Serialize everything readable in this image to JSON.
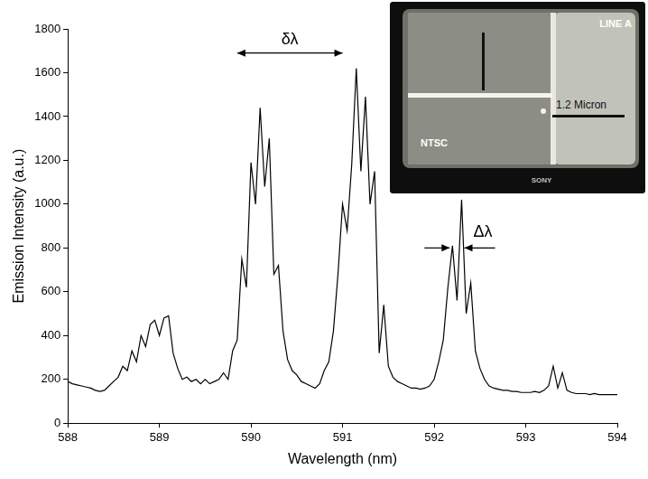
{
  "chart_data": {
    "type": "line",
    "x_label": "Wavelength (nm)",
    "y_label": "Emission Intensity (a.u.)",
    "x": [
      588.0,
      588.05,
      588.1,
      588.15,
      588.2,
      588.25,
      588.3,
      588.35,
      588.4,
      588.45,
      588.5,
      588.55,
      588.6,
      588.65,
      588.7,
      588.75,
      588.8,
      588.85,
      588.9,
      588.95,
      589.0,
      589.05,
      589.1,
      589.15,
      589.2,
      589.25,
      589.3,
      589.35,
      589.4,
      589.45,
      589.5,
      589.55,
      589.6,
      589.65,
      589.7,
      589.75,
      589.8,
      589.85,
      589.9,
      589.95,
      590.0,
      590.05,
      590.1,
      590.15,
      590.2,
      590.25,
      590.3,
      590.35,
      590.4,
      590.45,
      590.5,
      590.55,
      590.6,
      590.65,
      590.7,
      590.75,
      590.8,
      590.85,
      590.9,
      590.95,
      591.0,
      591.05,
      591.1,
      591.15,
      591.2,
      591.25,
      591.3,
      591.35,
      591.4,
      591.45,
      591.5,
      591.55,
      591.6,
      591.65,
      591.7,
      591.75,
      591.8,
      591.85,
      591.9,
      591.95,
      592.0,
      592.05,
      592.1,
      592.15,
      592.2,
      592.25,
      592.3,
      592.35,
      592.4,
      592.45,
      592.5,
      592.55,
      592.6,
      592.65,
      592.7,
      592.75,
      592.8,
      592.85,
      592.9,
      592.95,
      593.0,
      593.05,
      593.1,
      593.15,
      593.2,
      593.25,
      593.3,
      593.35,
      593.4,
      593.45,
      593.5,
      593.55,
      593.6,
      593.65,
      593.7,
      593.75,
      593.8,
      593.85,
      593.9,
      593.95,
      594.0
    ],
    "values": [
      190,
      180,
      175,
      170,
      165,
      160,
      150,
      145,
      150,
      170,
      190,
      210,
      260,
      240,
      330,
      280,
      400,
      350,
      450,
      470,
      400,
      480,
      490,
      320,
      250,
      200,
      210,
      190,
      200,
      180,
      200,
      180,
      190,
      200,
      230,
      200,
      330,
      380,
      750,
      620,
      1190,
      1000,
      1440,
      1080,
      1300,
      680,
      720,
      420,
      290,
      240,
      220,
      190,
      180,
      170,
      160,
      180,
      240,
      280,
      420,
      680,
      1000,
      880,
      1180,
      1620,
      1150,
      1490,
      1000,
      1150,
      320,
      540,
      260,
      210,
      190,
      180,
      170,
      160,
      160,
      155,
      160,
      170,
      200,
      280,
      380,
      620,
      810,
      560,
      1020,
      500,
      640,
      330,
      250,
      200,
      170,
      160,
      155,
      150,
      150,
      145,
      145,
      140,
      140,
      140,
      145,
      140,
      150,
      170,
      260,
      160,
      230,
      150,
      140,
      135,
      135,
      135,
      130,
      135,
      130,
      130,
      130,
      130,
      130
    ],
    "color": "#000000",
    "xlim": [
      588,
      594
    ],
    "xticks": [
      588,
      589,
      590,
      591,
      592,
      593,
      594
    ],
    "ylim": [
      0,
      1800
    ],
    "yticks": [
      0,
      200,
      400,
      600,
      800,
      1000,
      1200,
      1400,
      1600,
      1800
    ],
    "grid": false,
    "annotations": [
      {
        "text": "δλ",
        "x": [
          589.85,
          591.0
        ],
        "y": 1690,
        "line_style": "double_arrow"
      },
      {
        "text": "Δλ",
        "x": [
          592.17,
          592.33
        ],
        "y": 800,
        "line_style": "inward_arrows"
      }
    ],
    "inset": {
      "screen_label": "LINE A",
      "format_label": "NTSC",
      "scale_label": "1.2 Micron",
      "brand": "SONY"
    }
  }
}
